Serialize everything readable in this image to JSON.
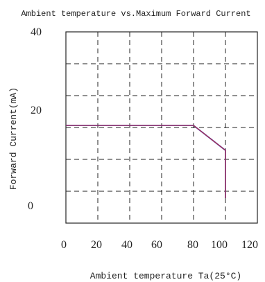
{
  "chart_data": {
    "type": "line",
    "title": "Ambient temperature vs.Maximum Forward Current",
    "xlabel": "Ambient temperature Ta(25°C)",
    "ylabel": "Forward Current(mA)",
    "x_ticks": [
      "0",
      "20",
      "40",
      "60",
      "80",
      "100",
      "120"
    ],
    "y_ticks": [
      "40",
      "20",
      "0"
    ],
    "xlim": [
      0,
      120
    ],
    "y_tick_values": [
      40,
      20,
      0
    ],
    "grid": true,
    "series": [
      {
        "color": "#3a3acc",
        "x": [
          0,
          80,
          100,
          100
        ],
        "y": [
          17.5,
          17.5,
          11.5,
          0
        ]
      },
      {
        "color": "#c03030",
        "x": [
          0,
          80,
          100,
          100
        ],
        "y": [
          17.5,
          17.5,
          11.5,
          0
        ]
      }
    ]
  }
}
